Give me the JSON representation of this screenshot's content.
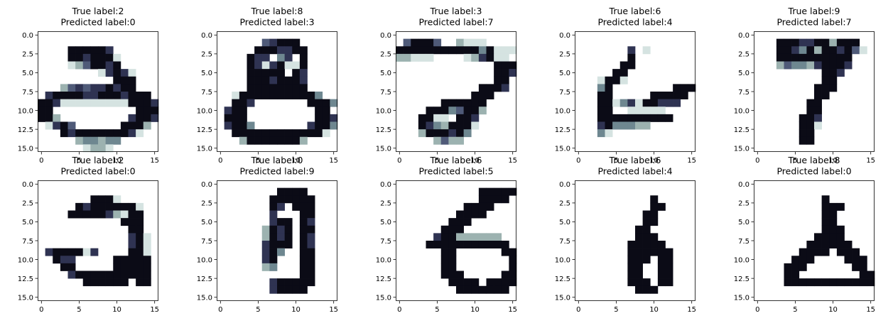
{
  "figure": {
    "cmap": [
      "#ffffff",
      "#d5e3e1",
      "#9cb2b0",
      "#6e8790",
      "#4f5a78",
      "#2f3352",
      "#0b0b16"
    ]
  },
  "chart_data": {
    "type": "heatmap",
    "grid": "off",
    "shared_axes": {
      "x_ticks": [
        "0",
        "5",
        "10",
        "15"
      ],
      "y_ticks": [
        "0.0",
        "2.5",
        "5.0",
        "7.5",
        "10.0",
        "12.5",
        "15.0"
      ],
      "xlim": [
        -0.5,
        15.5
      ],
      "ylim": [
        15.5,
        -0.5
      ]
    },
    "panels": [
      {
        "title_line1": "True label:2",
        "title_line2": "Predicted label:0",
        "pixels": [
          "0000000000000000",
          "0000000000000000",
          "0000666665000000",
          "0000665666100000",
          "0000124665600000",
          "0000000015651000",
          "0000000000666000",
          "0002454556566000",
          "0566665566656660",
          "6651111111116665",
          "6600000000000666",
          "6620000000005665",
          "0156400000066620",
          "0006566666665100",
          "0000023323300000",
          "0000001221000000"
        ]
      },
      {
        "title_line1": "True label:8",
        "title_line2": "Predicted label:3",
        "pixels": [
          "0000000000000000",
          "0000004566600000",
          "0000066655660000",
          "0000655035060000",
          "0000651561160000",
          "0000666660650000",
          "0000666566650000",
          "0000666666660000",
          "0016666666666300",
          "0066500000006663",
          "0566000000000660",
          "0666000000000665",
          "0566300000005663",
          "0066666666666610",
          "0002666666620000",
          "0000000000000000"
        ]
      },
      {
        "title_line1": "True label:3",
        "title_line2": "Predicted label:7",
        "pixels": [
          "0000000000000000",
          "0466640021110000",
          "6666666666636111",
          "2211100001256110",
          "0000000000000666",
          "0000000000000665",
          "0000000000000660",
          "0000000000066650",
          "0000000000666000",
          "0000006666660000",
          "0000666346620000",
          "0006611066500000",
          "0006532666100000",
          "0002666563000000",
          "0000024220000000",
          "0000000000000000"
        ]
      },
      {
        "title_line1": "True label:6",
        "title_line2": "Predicted label:4",
        "pixels": [
          "0000000000000000",
          "0000000000000000",
          "0000000501000000",
          "0000000600000000",
          "0000006600000000",
          "0000066000000000",
          "0001661000000000",
          "0003600000000666",
          "0006600000666660",
          "0006613516655500",
          "0006600111110000",
          "0006666666666000",
          "0005633322000000",
          "0003100000000000",
          "0000000000000000",
          "0000000000000000"
        ]
      },
      {
        "title_line1": "True label:9",
        "title_line2": "Predicted label:7",
        "pixels": [
          "0000000000000000",
          "0006665566266600",
          "0006653626656410",
          "0006666666666000",
          "0002433256665000",
          "0000000006650000",
          "0000000006600000",
          "0000000066600000",
          "0000000066000000",
          "0000000660000000",
          "0000000660000000",
          "0000006650000000",
          "0000006610000000",
          "0000006600000000",
          "0000006600000000",
          "0000000000000000"
        ]
      },
      {
        "title_line1": "True label:2",
        "title_line2": "Predicted label:0",
        "pixels": [
          "0000000000000000",
          "0000000000000000",
          "0000000666100000",
          "0000065666666100",
          "0000666665216600",
          "0000000000066600",
          "0000000000006600",
          "0000000000005610",
          "0000000000005610",
          "0566661500006610",
          "0065500000666660",
          "0006600000666660",
          "0000566666666660",
          "0000006666660660",
          "0000000000000000",
          "0000000000000000"
        ]
      },
      {
        "title_line1": "True label:0",
        "title_line2": "Predicted label:9",
        "pixels": [
          "0000000000000000",
          "0000000066660000",
          "0000000666666000",
          "0000000650666000",
          "0000000500066000",
          "0000000566065000",
          "0000002656066000",
          "0000002656065000",
          "0000005666065000",
          "0000005630066000",
          "0000005600066000",
          "0000002300066000",
          "0000000000066000",
          "0000000566666000",
          "0000000566660000",
          "0000000000000000"
        ]
      },
      {
        "title_line1": "True label:6",
        "title_line2": "Predicted label:5",
        "pixels": [
          "0000000000000000",
          "0000000000066666",
          "0000000000066660",
          "0000000006666000",
          "0000000066660000",
          "0000000666000000",
          "0000006660000000",
          "0000056622222200",
          "0000666666666660",
          "0000006600000066",
          "0000006600000006",
          "0000006600000006",
          "0000006660000066",
          "0000000666606666",
          "0000000066666660",
          "0000000000000000"
        ]
      },
      {
        "title_line1": "True label:6",
        "title_line2": "Predicted label:4",
        "pixels": [
          "0000000000000000",
          "0000000000000000",
          "0000000000600000",
          "0000000000660000",
          "0000000006600000",
          "0000000006600000",
          "0000000066000000",
          "0000000066600000",
          "0000000666660000",
          "0000000666666000",
          "0000000666066000",
          "0000000660066000",
          "0000000660066000",
          "0000000666066000",
          "0000000066600000",
          "0000000000000000"
        ]
      },
      {
        "title_line1": "True label:8",
        "title_line2": "Predicted label:0",
        "pixels": [
          "0000000000000000",
          "0000000000000000",
          "0000000006000000",
          "0000000006660000",
          "0000000006600000",
          "0000000006600000",
          "0000000006660000",
          "0000000066660000",
          "0000000666666000",
          "0000006666066600",
          "0000066600006660",
          "0000666000000660",
          "0000660000000066",
          "0000666666666666",
          "0000000000000000",
          "0000000000000000"
        ]
      }
    ]
  }
}
